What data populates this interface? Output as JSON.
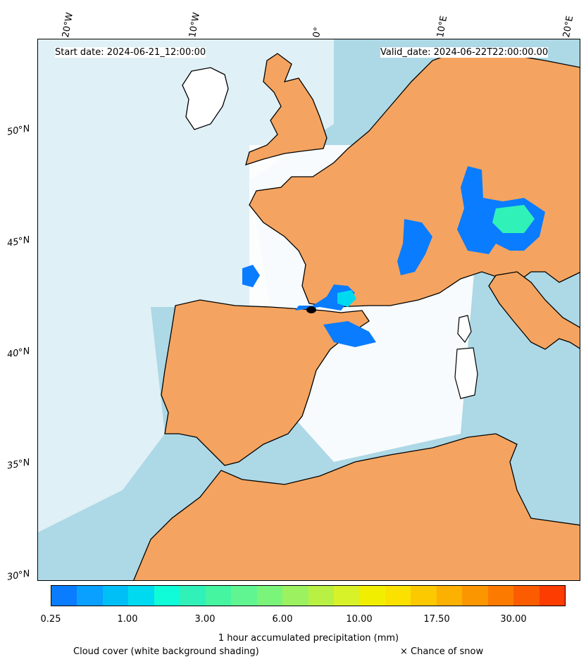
{
  "header": {
    "start_date": "Start date: 2024-06-21_12:00:00",
    "valid_date": "Valid_date: 2024-06-22T22:00:00.00"
  },
  "longitude_labels": [
    "20°W",
    "10°W",
    "0°",
    "10°E",
    "20°E"
  ],
  "latitude_labels": [
    "50°N",
    "45°N",
    "40°N",
    "35°N",
    "30°N"
  ],
  "colorbar": {
    "title": "1 hour accumulated precipitation (mm)",
    "tick_labels": [
      "0.25",
      "1.00",
      "3.00",
      "6.00",
      "10.00",
      "17.50",
      "30.00"
    ],
    "colors": [
      "#0a7cff",
      "#0aa0ff",
      "#00bff7",
      "#00daf0",
      "#10fbd8",
      "#30f2b8",
      "#45f5a0",
      "#60f590",
      "#7af57a",
      "#9cf160",
      "#b8f044",
      "#d8f22a",
      "#f2ee00",
      "#fae100",
      "#fcc800",
      "#fcb000",
      "#fc9600",
      "#fc7a00",
      "#fc5c00",
      "#fc3c00"
    ]
  },
  "legend": {
    "cloud_cover": "Cloud cover (white background shading)",
    "snow": "× Chance of snow"
  },
  "map_colors": {
    "sea": "#add8e6",
    "dry_land": "#f4a460",
    "cloud": "#ffffff",
    "coast": "#000000"
  }
}
